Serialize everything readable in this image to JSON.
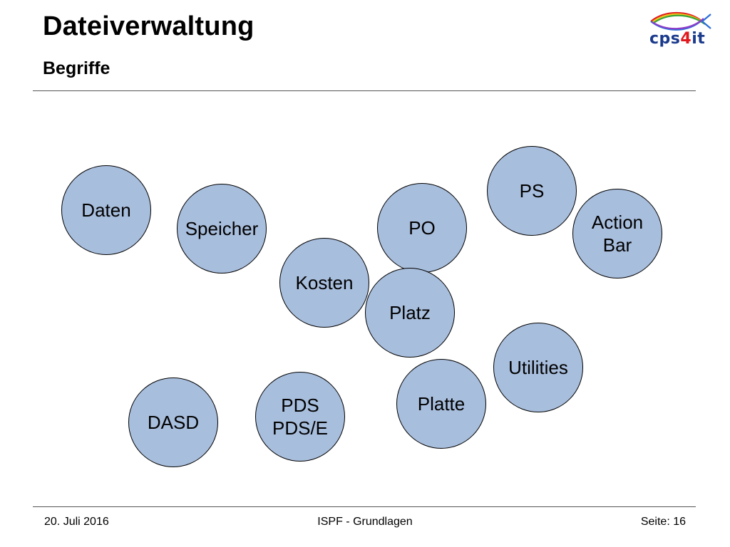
{
  "slide": {
    "title": "Dateiverwaltung",
    "subtitle": "Begriffe"
  },
  "logo": {
    "text_part1": "cps",
    "text_part2": "4",
    "text_part3": "it",
    "colors": {
      "text": "#1a3a8c",
      "accent": "#e0191e",
      "fish_red": "#e0191e",
      "fish_yellow": "#f3c51c",
      "fish_green": "#3aa335",
      "fish_blue": "#2a6dd8",
      "fish_purple": "#8e3cc8"
    }
  },
  "terms": [
    {
      "id": "daten",
      "label": "Daten"
    },
    {
      "id": "speicher",
      "label": "Speicher"
    },
    {
      "id": "kosten",
      "label": "Kosten"
    },
    {
      "id": "po",
      "label": "PO"
    },
    {
      "id": "ps",
      "label": "PS"
    },
    {
      "id": "action-bar",
      "label": "Action\nBar"
    },
    {
      "id": "platz",
      "label": "Platz"
    },
    {
      "id": "utilities",
      "label": "Utilities"
    },
    {
      "id": "platte",
      "label": "Platte"
    },
    {
      "id": "pds",
      "label": "PDS\nPDS/E"
    },
    {
      "id": "dasd",
      "label": "DASD"
    }
  ],
  "colors": {
    "circle_fill": "#a8bedd",
    "rule": "#555555"
  },
  "footer": {
    "date": "20. Juli 2016",
    "center": "ISPF - Grundlagen",
    "page": "Seite: 16"
  }
}
